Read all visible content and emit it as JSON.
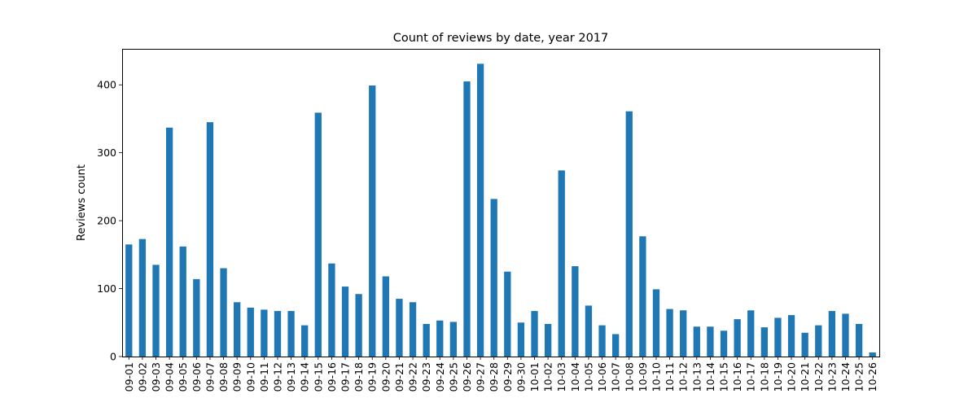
{
  "chart_data": {
    "type": "bar",
    "title": "Count of reviews by date, year 2017",
    "xlabel": "",
    "ylabel": "Reviews count",
    "ylim": [
      0,
      453
    ],
    "yticks": [
      0,
      100,
      200,
      300,
      400
    ],
    "grid": false,
    "legend": "none",
    "bar_color": "#1f77b4",
    "categories": [
      "09-01",
      "09-02",
      "09-03",
      "09-04",
      "09-05",
      "09-06",
      "09-07",
      "09-08",
      "09-09",
      "09-10",
      "09-11",
      "09-12",
      "09-13",
      "09-14",
      "09-15",
      "09-16",
      "09-17",
      "09-18",
      "09-19",
      "09-20",
      "09-21",
      "09-22",
      "09-23",
      "09-24",
      "09-25",
      "09-26",
      "09-27",
      "09-28",
      "09-29",
      "09-30",
      "10-01",
      "10-02",
      "10-03",
      "10-04",
      "10-05",
      "10-06",
      "10-07",
      "10-08",
      "10-09",
      "10-10",
      "10-11",
      "10-12",
      "10-13",
      "10-14",
      "10-15",
      "10-16",
      "10-17",
      "10-18",
      "10-19",
      "10-20",
      "10-21",
      "10-22",
      "10-23",
      "10-24",
      "10-25",
      "10-26"
    ],
    "values": [
      165,
      173,
      135,
      337,
      162,
      114,
      345,
      130,
      80,
      72,
      69,
      67,
      67,
      46,
      359,
      137,
      103,
      92,
      399,
      118,
      85,
      80,
      48,
      53,
      51,
      405,
      431,
      232,
      125,
      50,
      67,
      48,
      274,
      133,
      75,
      46,
      33,
      361,
      177,
      99,
      70,
      68,
      44,
      44,
      38,
      55,
      68,
      43,
      57,
      61,
      35,
      46,
      67,
      63,
      48,
      6
    ]
  }
}
